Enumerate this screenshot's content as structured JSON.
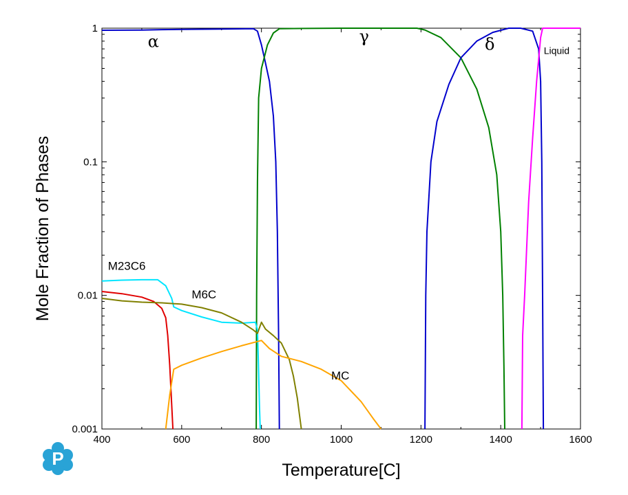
{
  "chart_data": {
    "type": "line",
    "title": "",
    "xlabel": "Temperature[C]",
    "ylabel": "Mole Fraction of Phases",
    "xlim": [
      400,
      1600
    ],
    "ylim": [
      0.001,
      1
    ],
    "yscale": "log",
    "x_ticks": [
      400,
      600,
      800,
      1000,
      1200,
      1400,
      1600
    ],
    "x_tick_labels": [
      "400",
      "600",
      "800",
      "1000",
      "1200",
      "1400",
      "1600"
    ],
    "y_ticks": [
      0.001,
      0.01,
      0.1,
      1
    ],
    "y_tick_labels": [
      "0.001",
      "0.01",
      "0.1",
      "1"
    ],
    "grid": false,
    "legend": "none",
    "series": [
      {
        "name": "α",
        "color": "#0000cc",
        "points": [
          [
            400,
            0.965
          ],
          [
            450,
            0.966
          ],
          [
            500,
            0.968
          ],
          [
            550,
            0.975
          ],
          [
            600,
            0.98
          ],
          [
            700,
            0.985
          ],
          [
            780,
            0.99
          ],
          [
            790,
            0.95
          ],
          [
            800,
            0.75
          ],
          [
            810,
            0.55
          ],
          [
            820,
            0.4
          ],
          [
            830,
            0.22
          ],
          [
            836,
            0.1
          ],
          [
            840,
            0.03
          ],
          [
            843,
            0.005
          ],
          [
            845,
            0.001
          ]
        ]
      },
      {
        "name": "γ",
        "color": "#008000",
        "points": [
          [
            787,
            0.001
          ],
          [
            788,
            0.01
          ],
          [
            790,
            0.07
          ],
          [
            793,
            0.3
          ],
          [
            800,
            0.5
          ],
          [
            815,
            0.75
          ],
          [
            830,
            0.92
          ],
          [
            845,
            0.99
          ],
          [
            900,
            0.995
          ],
          [
            1000,
            1.0
          ],
          [
            1100,
            1.0
          ],
          [
            1190,
            1.0
          ],
          [
            1210,
            0.97
          ],
          [
            1250,
            0.85
          ],
          [
            1300,
            0.6
          ],
          [
            1340,
            0.35
          ],
          [
            1370,
            0.18
          ],
          [
            1390,
            0.08
          ],
          [
            1400,
            0.03
          ],
          [
            1405,
            0.01
          ],
          [
            1408,
            0.003
          ],
          [
            1410,
            0.001
          ]
        ]
      },
      {
        "name": "δ",
        "color": "#0000cc",
        "points": [
          [
            1210,
            0.001
          ],
          [
            1212,
            0.01
          ],
          [
            1215,
            0.03
          ],
          [
            1225,
            0.1
          ],
          [
            1240,
            0.2
          ],
          [
            1270,
            0.38
          ],
          [
            1300,
            0.6
          ],
          [
            1340,
            0.8
          ],
          [
            1380,
            0.93
          ],
          [
            1420,
            1.0
          ],
          [
            1450,
            1.0
          ],
          [
            1480,
            0.95
          ],
          [
            1495,
            0.7
          ],
          [
            1500,
            0.4
          ],
          [
            1503,
            0.1
          ],
          [
            1505,
            0.01
          ],
          [
            1507,
            0.001
          ]
        ]
      },
      {
        "name": "Liquid",
        "color": "#ff00ff",
        "points": [
          [
            1453,
            0.001
          ],
          [
            1455,
            0.005
          ],
          [
            1460,
            0.01
          ],
          [
            1470,
            0.05
          ],
          [
            1480,
            0.15
          ],
          [
            1490,
            0.4
          ],
          [
            1500,
            0.85
          ],
          [
            1505,
            1.0
          ],
          [
            1600,
            1.0
          ]
        ]
      },
      {
        "name": "M23C6",
        "color": "#00e5ff",
        "points": [
          [
            400,
            0.0128
          ],
          [
            450,
            0.013
          ],
          [
            500,
            0.0131
          ],
          [
            540,
            0.0131
          ],
          [
            560,
            0.0118
          ],
          [
            575,
            0.0095
          ],
          [
            580,
            0.0082
          ],
          [
            600,
            0.0077
          ],
          [
            650,
            0.0069
          ],
          [
            700,
            0.0063
          ],
          [
            750,
            0.0062
          ],
          [
            785,
            0.0063
          ],
          [
            790,
            0.0055
          ],
          [
            792,
            0.0035
          ],
          [
            795,
            0.0015
          ],
          [
            797,
            0.001
          ]
        ]
      },
      {
        "name": "red",
        "color": "#e00000",
        "points": [
          [
            400,
            0.0107
          ],
          [
            450,
            0.0103
          ],
          [
            500,
            0.0097
          ],
          [
            530,
            0.009
          ],
          [
            550,
            0.008
          ],
          [
            560,
            0.0068
          ],
          [
            565,
            0.005
          ],
          [
            570,
            0.003
          ],
          [
            575,
            0.0015
          ],
          [
            578,
            0.001
          ]
        ]
      },
      {
        "name": "M6C",
        "color": "#808000",
        "points": [
          [
            400,
            0.0095
          ],
          [
            450,
            0.0091
          ],
          [
            500,
            0.0089
          ],
          [
            550,
            0.0088
          ],
          [
            600,
            0.0086
          ],
          [
            650,
            0.0081
          ],
          [
            700,
            0.0074
          ],
          [
            750,
            0.0063
          ],
          [
            780,
            0.0055
          ],
          [
            790,
            0.0052
          ],
          [
            800,
            0.0063
          ],
          [
            810,
            0.0056
          ],
          [
            830,
            0.005
          ],
          [
            850,
            0.0044
          ],
          [
            870,
            0.0033
          ],
          [
            880,
            0.0025
          ],
          [
            890,
            0.0017
          ],
          [
            895,
            0.0013
          ],
          [
            900,
            0.001
          ]
        ]
      },
      {
        "name": "MC",
        "color": "#ffa500",
        "points": [
          [
            560,
            0.001
          ],
          [
            570,
            0.0018
          ],
          [
            580,
            0.0028
          ],
          [
            600,
            0.003
          ],
          [
            650,
            0.0034
          ],
          [
            700,
            0.0038
          ],
          [
            750,
            0.0042
          ],
          [
            800,
            0.0046
          ],
          [
            820,
            0.004
          ],
          [
            850,
            0.0035
          ],
          [
            900,
            0.0032
          ],
          [
            950,
            0.0028
          ],
          [
            1000,
            0.0023
          ],
          [
            1050,
            0.0016
          ],
          [
            1080,
            0.0012
          ],
          [
            1100,
            0.001
          ]
        ]
      }
    ],
    "annotations": [
      {
        "text": "α",
        "x": 515,
        "y": 0.72,
        "style": "greek"
      },
      {
        "text": "γ",
        "x": 1045,
        "y": 0.79,
        "style": "greek"
      },
      {
        "text": "δ",
        "x": 1360,
        "y": 0.69,
        "style": "greek"
      },
      {
        "text": "Liquid",
        "x": 1508,
        "y": 0.64,
        "style": "small"
      },
      {
        "text": "M23C6",
        "x": 415,
        "y": 0.0155,
        "style": "normal"
      },
      {
        "text": "M6C",
        "x": 625,
        "y": 0.0095,
        "style": "normal"
      },
      {
        "text": "MC",
        "x": 975,
        "y": 0.00235,
        "style": "normal"
      }
    ]
  },
  "logo": {
    "icon": "computherm-p-logo",
    "letter": "P",
    "color": "#29a3d6"
  }
}
